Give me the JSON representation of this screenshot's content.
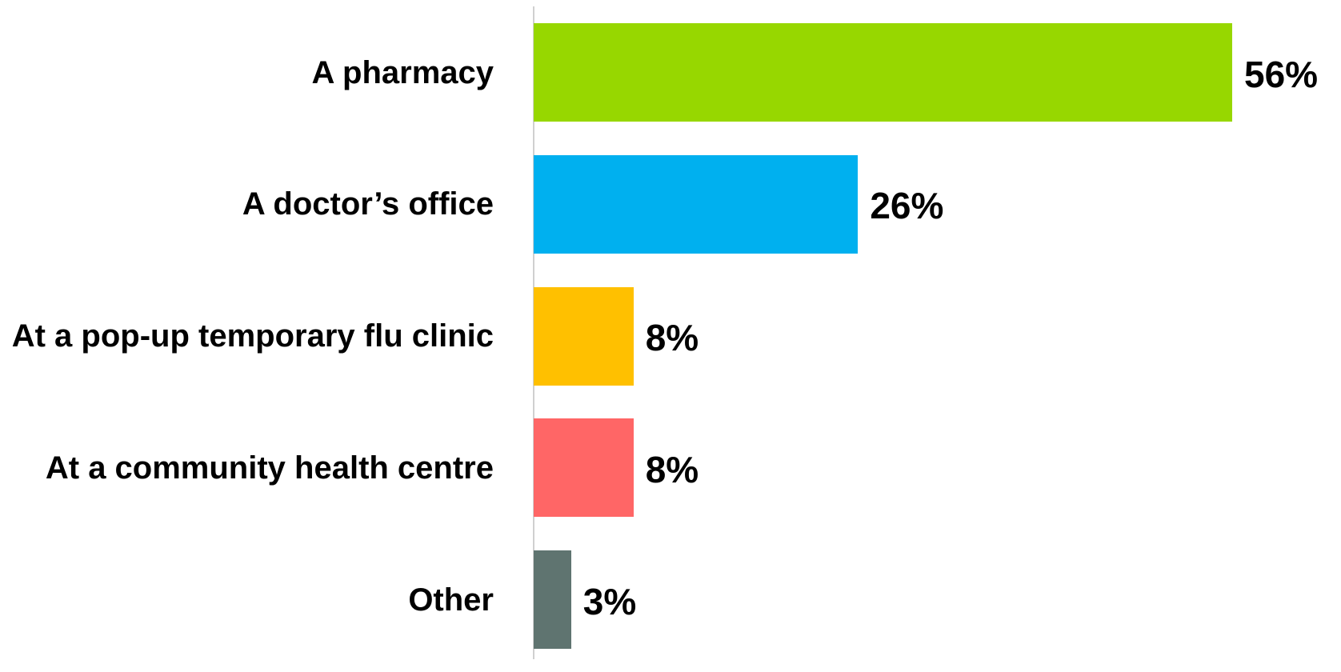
{
  "chart_data": {
    "type": "bar",
    "orientation": "horizontal",
    "categories": [
      "A pharmacy",
      "A doctor’s office",
      "At a pop-up temporary flu clinic",
      "At a community health centre",
      "Other"
    ],
    "values": [
      56,
      26,
      8,
      8,
      3
    ],
    "value_labels": [
      "56%",
      "26%",
      "8%",
      "8%",
      "3%"
    ],
    "colors": [
      "#97d700",
      "#00b0ef",
      "#ffc000",
      "#ff6666",
      "#5f7470"
    ]
  }
}
